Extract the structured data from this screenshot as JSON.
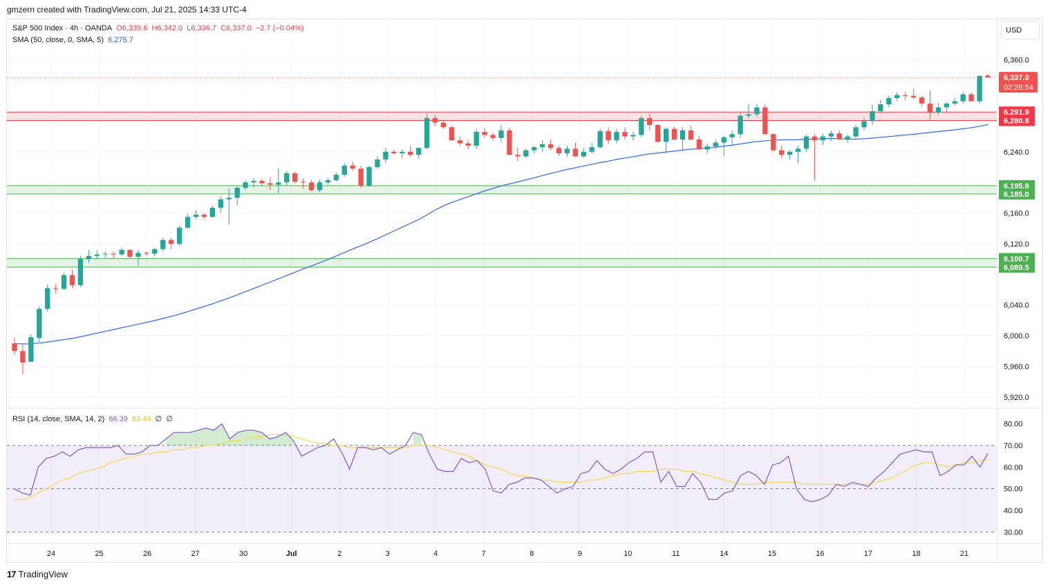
{
  "attribution": "gmzern created with TradingView.com, Jul 21, 2025 14:33 UTC-4",
  "currency_button": "USD",
  "footer_logo": "TradingView",
  "legend": {
    "symbol": "S&P 500 Index · 4h · OANDA",
    "open": "O6,339.6",
    "high": "H6,342.0",
    "low": "L6,336.7",
    "close": "C6,337.0",
    "change": "−2.7 (−0.04%)",
    "sma_label": "SMA (50, close, 0, SMA, 5)",
    "sma_value": "6,275.7",
    "rsi_label": "RSI (14, close, SMA, 14, 2)",
    "rsi_value": "66.39",
    "rsi_sma_value": "63.44",
    "rsi_extra1": "∅",
    "rsi_extra2": "∅"
  },
  "colors": {
    "up": "#26a69a",
    "down": "#ef5350",
    "sma": "#2962ff",
    "rsi": "#7e57c2",
    "rsi_sma": "#f7d548",
    "resistance_zone": "#f23645",
    "support_zone": "#4caf50"
  },
  "chart_data": {
    "type": "candlestick",
    "price_axis": {
      "ticks": [
        "6,360.0",
        "6,240.0",
        "6,160.0",
        "6,120.0",
        "6,040.0",
        "6,000.0",
        "5,960.0",
        "5,920.0"
      ],
      "range": [
        5910,
        6375
      ]
    },
    "time_axis": {
      "labels": [
        "24",
        "25",
        "26",
        "27",
        "30",
        "Jul",
        "2",
        "3",
        "4",
        "7",
        "8",
        "9",
        "10",
        "11",
        "14",
        "15",
        "16",
        "17",
        "18",
        "21"
      ]
    },
    "current_price": {
      "value": "6,337.0",
      "countdown": "02:26:54"
    },
    "zones": [
      {
        "kind": "resistance",
        "top": 6291.9,
        "bottom": 6280.8,
        "top_label": "6,291.9",
        "bottom_label": "6,280.8"
      },
      {
        "kind": "support",
        "top": 6195.8,
        "bottom": 6185.0,
        "top_label": "6,195.8",
        "bottom_label": "6,185.0"
      },
      {
        "kind": "support",
        "top": 6100.7,
        "bottom": 6089.5,
        "top_label": "6,100.7",
        "bottom_label": "6,089.5"
      }
    ],
    "candles": [
      [
        5990,
        5997,
        5975,
        5980
      ],
      [
        5980,
        5988,
        5950,
        5965
      ],
      [
        5966,
        6002,
        5966,
        5998
      ],
      [
        5997,
        6038,
        5992,
        6035
      ],
      [
        6035,
        6067,
        6032,
        6062
      ],
      [
        6062,
        6067,
        6055,
        6061
      ],
      [
        6061,
        6082,
        6060,
        6079
      ],
      [
        6079,
        6086,
        6062,
        6066
      ],
      [
        6066,
        6104,
        6063,
        6100
      ],
      [
        6100,
        6112,
        6095,
        6104
      ],
      [
        6104,
        6111,
        6100,
        6106
      ],
      [
        6106,
        6110,
        6102,
        6107
      ],
      [
        6107,
        6110,
        6100,
        6106
      ],
      [
        6106,
        6115,
        6104,
        6112
      ],
      [
        6112,
        6113,
        6100,
        6103
      ],
      [
        6103,
        6112,
        6091,
        6108
      ],
      [
        6108,
        6110,
        6104,
        6107
      ],
      [
        6107,
        6115,
        6103,
        6113
      ],
      [
        6113,
        6128,
        6110,
        6125
      ],
      [
        6125,
        6128,
        6113,
        6120
      ],
      [
        6120,
        6144,
        6117,
        6141
      ],
      [
        6141,
        6159,
        6139,
        6155
      ],
      [
        6155,
        6164,
        6152,
        6158
      ],
      [
        6158,
        6160,
        6152,
        6155
      ],
      [
        6155,
        6170,
        6154,
        6167
      ],
      [
        6167,
        6182,
        6160,
        6178
      ],
      [
        6178,
        6192,
        6145,
        6180
      ],
      [
        6180,
        6195,
        6170,
        6193
      ],
      [
        6193,
        6203,
        6190,
        6200
      ],
      [
        6200,
        6206,
        6194,
        6202
      ],
      [
        6202,
        6205,
        6195,
        6199
      ],
      [
        6199,
        6207,
        6190,
        6197
      ],
      [
        6197,
        6218,
        6186,
        6200
      ],
      [
        6200,
        6215,
        6196,
        6212
      ],
      [
        6212,
        6214,
        6198,
        6201
      ],
      [
        6201,
        6205,
        6192,
        6200
      ],
      [
        6200,
        6203,
        6188,
        6190
      ],
      [
        6190,
        6204,
        6187,
        6200
      ],
      [
        6200,
        6206,
        6197,
        6203
      ],
      [
        6203,
        6213,
        6201,
        6210
      ],
      [
        6210,
        6225,
        6207,
        6222
      ],
      [
        6222,
        6227,
        6215,
        6218
      ],
      [
        6218,
        6222,
        6193,
        6196
      ],
      [
        6196,
        6222,
        6194,
        6220
      ],
      [
        6220,
        6234,
        6218,
        6230
      ],
      [
        6230,
        6245,
        6225,
        6240
      ],
      [
        6240,
        6243,
        6236,
        6238
      ],
      [
        6238,
        6243,
        6232,
        6240
      ],
      [
        6240,
        6248,
        6233,
        6236
      ],
      [
        6236,
        6246,
        6231,
        6245
      ],
      [
        6245,
        6290,
        6243,
        6284
      ],
      [
        6284,
        6288,
        6273,
        6278
      ],
      [
        6278,
        6281,
        6270,
        6272
      ],
      [
        6272,
        6274,
        6255,
        6255
      ],
      [
        6255,
        6260,
        6248,
        6251
      ],
      [
        6251,
        6255,
        6243,
        6248
      ],
      [
        6248,
        6270,
        6244,
        6266
      ],
      [
        6266,
        6271,
        6258,
        6262
      ],
      [
        6262,
        6265,
        6255,
        6258
      ],
      [
        6258,
        6275,
        6252,
        6268
      ],
      [
        6268,
        6272,
        6235,
        6236
      ],
      [
        6236,
        6246,
        6228,
        6234
      ],
      [
        6234,
        6244,
        6232,
        6242
      ],
      [
        6242,
        6248,
        6238,
        6246
      ],
      [
        6246,
        6255,
        6240,
        6250
      ],
      [
        6250,
        6256,
        6242,
        6245
      ],
      [
        6245,
        6248,
        6235,
        6238
      ],
      [
        6238,
        6248,
        6234,
        6244
      ],
      [
        6244,
        6252,
        6233,
        6234
      ],
      [
        6234,
        6245,
        6232,
        6240
      ],
      [
        6240,
        6252,
        6238,
        6246
      ],
      [
        6246,
        6270,
        6244,
        6267
      ],
      [
        6267,
        6272,
        6250,
        6255
      ],
      [
        6255,
        6270,
        6251,
        6266
      ],
      [
        6266,
        6272,
        6256,
        6260
      ],
      [
        6260,
        6266,
        6255,
        6262
      ],
      [
        6262,
        6287,
        6259,
        6284
      ],
      [
        6284,
        6290,
        6268,
        6275
      ],
      [
        6275,
        6276,
        6252,
        6253
      ],
      [
        6253,
        6272,
        6240,
        6270
      ],
      [
        6270,
        6273,
        6255,
        6256
      ],
      [
        6256,
        6272,
        6241,
        6268
      ],
      [
        6268,
        6274,
        6255,
        6256
      ],
      [
        6256,
        6261,
        6243,
        6243
      ],
      [
        6243,
        6251,
        6238,
        6247
      ],
      [
        6247,
        6256,
        6243,
        6252
      ],
      [
        6252,
        6261,
        6234,
        6259
      ],
      [
        6259,
        6268,
        6248,
        6263
      ],
      [
        6263,
        6292,
        6258,
        6287
      ],
      [
        6287,
        6302,
        6283,
        6289
      ],
      [
        6289,
        6302,
        6286,
        6298
      ],
      [
        6298,
        6302,
        6262,
        6263
      ],
      [
        6263,
        6264,
        6240,
        6242
      ],
      [
        6242,
        6248,
        6232,
        6236
      ],
      [
        6236,
        6242,
        6230,
        6240
      ],
      [
        6240,
        6248,
        6225,
        6244
      ],
      [
        6244,
        6262,
        6240,
        6260
      ],
      [
        6260,
        6263,
        6203,
        6255
      ],
      [
        6255,
        6264,
        6249,
        6260
      ],
      [
        6260,
        6268,
        6254,
        6264
      ],
      [
        6264,
        6268,
        6255,
        6257
      ],
      [
        6257,
        6263,
        6252,
        6260
      ],
      [
        6260,
        6275,
        6258,
        6272
      ],
      [
        6272,
        6285,
        6268,
        6280
      ],
      [
        6280,
        6302,
        6275,
        6293
      ],
      [
        6293,
        6308,
        6290,
        6302
      ],
      [
        6302,
        6313,
        6298,
        6310
      ],
      [
        6310,
        6318,
        6306,
        6314
      ],
      [
        6314,
        6318,
        6307,
        6313
      ],
      [
        6313,
        6322,
        6308,
        6311
      ],
      [
        6311,
        6313,
        6299,
        6303
      ],
      [
        6303,
        6320,
        6282,
        6291
      ],
      [
        6291,
        6304,
        6288,
        6298
      ],
      [
        6298,
        6305,
        6292,
        6303
      ],
      [
        6303,
        6310,
        6300,
        6306
      ],
      [
        6306,
        6318,
        6303,
        6315
      ],
      [
        6315,
        6318,
        6305,
        6306
      ],
      [
        6306,
        6340,
        6303,
        6339
      ],
      [
        6339.6,
        6342,
        6336.7,
        6337
      ]
    ],
    "rsi": {
      "ticks": [
        "80.00",
        "70.00",
        "60.00",
        "50.00",
        "40.00",
        "30.00"
      ],
      "range": [
        25,
        85
      ],
      "upper_band": 70,
      "middle_band": 50,
      "lower_band": 30,
      "values": [
        50,
        48,
        47,
        60,
        64,
        65,
        67,
        65,
        68,
        69,
        69,
        69,
        69,
        70,
        66,
        66,
        67,
        70,
        70,
        73,
        76,
        76,
        76,
        77,
        78,
        77,
        80,
        73,
        76,
        77,
        77,
        76,
        73,
        74,
        76,
        72,
        65,
        67,
        69,
        70,
        73,
        67,
        59,
        69,
        69,
        68,
        69,
        66,
        68,
        70,
        76,
        75,
        66,
        59,
        58,
        58,
        64,
        62,
        63,
        59,
        49,
        48,
        52,
        53,
        55,
        55,
        54,
        51,
        48,
        50,
        51,
        57,
        58,
        63,
        59,
        57,
        59,
        62,
        64,
        67,
        67,
        53,
        58,
        51,
        51,
        57,
        53,
        45,
        45,
        48,
        49,
        56,
        58,
        56,
        52,
        61,
        62,
        65,
        50,
        45,
        44,
        45,
        47,
        52,
        51,
        53,
        52,
        51,
        55,
        58,
        62,
        66,
        67,
        68,
        67,
        67,
        56,
        58,
        61,
        61,
        65,
        60,
        66.39
      ],
      "sma_values": [
        45,
        45,
        46,
        48,
        50,
        52,
        54,
        55,
        57,
        58,
        59,
        60,
        62,
        63,
        64,
        65,
        66,
        66,
        67,
        67,
        68,
        68,
        69,
        69,
        70,
        70,
        71,
        72,
        72,
        73,
        74,
        74,
        75,
        75,
        75,
        74,
        73,
        72,
        71,
        71,
        70,
        70,
        69,
        69,
        69,
        69,
        69,
        69,
        69,
        69,
        70,
        70,
        70,
        69,
        68,
        67,
        66,
        65,
        63,
        61,
        60,
        59,
        57,
        56,
        56,
        55,
        54,
        54,
        53,
        53,
        53,
        53,
        54,
        54,
        55,
        56,
        57,
        57,
        58,
        58,
        58,
        59,
        59,
        59,
        58,
        58,
        57,
        56,
        55,
        54,
        53,
        52,
        52,
        52,
        53,
        53,
        53,
        53,
        53,
        52,
        52,
        52,
        52,
        52,
        52,
        52,
        52,
        52,
        53,
        54,
        55,
        57,
        59,
        61,
        62,
        62,
        61,
        60,
        61,
        62,
        62,
        63,
        63.44
      ]
    }
  }
}
